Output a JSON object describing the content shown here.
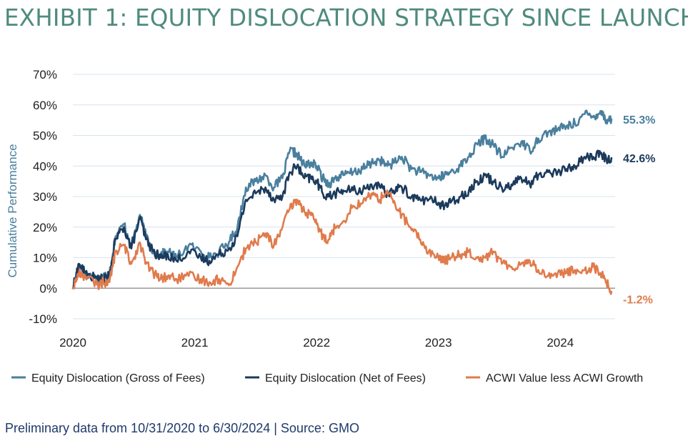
{
  "title": "EXHIBIT 1: EQUITY DISLOCATION STRATEGY SINCE LAUNCH",
  "footnote": "Preliminary data from 10/31/2020 to 6/30/2024 | Source: GMO",
  "colors": {
    "title": "#4f8b7d",
    "gross": "#4a7f9e",
    "net": "#1c3a5c",
    "acwi": "#e07b4c",
    "ylabel": "#4a7f9e",
    "grid": "#d6e4ee",
    "zero_line": "#9a9a9a",
    "footnote": "#1f3a6b"
  },
  "chart_data": {
    "type": "line",
    "title": "EXHIBIT 1: EQUITY DISLOCATION STRATEGY SINCE LAUNCH",
    "xlabel": "",
    "ylabel": "Cumulative Performance",
    "xlim": [
      2020.0,
      2024.45
    ],
    "ylim": [
      -10,
      70
    ],
    "y_unit": "%",
    "yticks": [
      -10,
      0,
      10,
      20,
      30,
      40,
      50,
      60,
      70
    ],
    "ytick_labels": [
      "-10%",
      "0%",
      "10%",
      "20%",
      "30%",
      "40%",
      "50%",
      "60%",
      "70%"
    ],
    "xticks": [
      2020,
      2021,
      2022,
      2023,
      2024
    ],
    "xtick_labels": [
      "2020",
      "2021",
      "2022",
      "2023",
      "2024"
    ],
    "grid": "horizontal",
    "legend_position": "bottom",
    "series": [
      {
        "name": "Equity Dislocation (Gross of Fees)",
        "color": "#4a7f9e",
        "end_label": "55.3%",
        "x": [
          2020.0,
          2020.05,
          2020.1,
          2020.2,
          2020.25,
          2020.3,
          2020.35,
          2020.42,
          2020.48,
          2020.55,
          2020.6,
          2020.66,
          2020.72,
          2020.78,
          2020.85,
          2020.95,
          2021.05,
          2021.12,
          2021.2,
          2021.28,
          2021.35,
          2021.42,
          2021.5,
          2021.58,
          2021.65,
          2021.72,
          2021.78,
          2021.84,
          2021.9,
          2021.95,
          2022.0,
          2022.05,
          2022.1,
          2022.15,
          2022.22,
          2022.3,
          2022.38,
          2022.45,
          2022.52,
          2022.58,
          2022.63,
          2022.7,
          2022.78,
          2022.85,
          2022.92,
          2023.0,
          2023.05,
          2023.1,
          2023.18,
          2023.25,
          2023.32,
          2023.38,
          2023.45,
          2023.52,
          2023.6,
          2023.68,
          2023.75,
          2023.82,
          2023.9,
          2023.98,
          2024.05,
          2024.12,
          2024.2,
          2024.27,
          2024.33,
          2024.38,
          2024.42
        ],
        "values": [
          0,
          8,
          5,
          3,
          4,
          5,
          17,
          21,
          14,
          24,
          17,
          12,
          11,
          12,
          10,
          14,
          12,
          10,
          12,
          15,
          20,
          33,
          35,
          37,
          33,
          36,
          45,
          44,
          40,
          41,
          40,
          36,
          34,
          36,
          37,
          38,
          39,
          41,
          42,
          40,
          41,
          43,
          39,
          38,
          37,
          36,
          37,
          38,
          40,
          43,
          47,
          49,
          47,
          43,
          46,
          48,
          45,
          49,
          51,
          52,
          53,
          54,
          57,
          56,
          58,
          55,
          55.3
        ]
      },
      {
        "name": "Equity Dislocation (Net of Fees)",
        "color": "#1c3a5c",
        "end_label": "42.6%",
        "x": [
          2020.0,
          2020.05,
          2020.1,
          2020.2,
          2020.25,
          2020.3,
          2020.35,
          2020.42,
          2020.48,
          2020.55,
          2020.6,
          2020.66,
          2020.72,
          2020.78,
          2020.85,
          2020.95,
          2021.05,
          2021.12,
          2021.2,
          2021.28,
          2021.35,
          2021.42,
          2021.5,
          2021.58,
          2021.65,
          2021.72,
          2021.78,
          2021.84,
          2021.9,
          2021.95,
          2022.0,
          2022.05,
          2022.1,
          2022.15,
          2022.22,
          2022.3,
          2022.38,
          2022.45,
          2022.52,
          2022.58,
          2022.63,
          2022.7,
          2022.78,
          2022.85,
          2022.92,
          2023.0,
          2023.05,
          2023.1,
          2023.18,
          2023.25,
          2023.32,
          2023.38,
          2023.45,
          2023.52,
          2023.6,
          2023.68,
          2023.75,
          2023.82,
          2023.9,
          2023.98,
          2024.05,
          2024.12,
          2024.2,
          2024.27,
          2024.33,
          2024.38,
          2024.42
        ],
        "values": [
          0,
          8,
          5,
          3,
          3,
          4,
          16,
          20,
          13,
          23,
          16,
          12,
          10,
          11,
          9,
          12,
          10,
          9,
          11,
          13,
          17,
          29,
          31,
          33,
          29,
          30,
          38,
          40,
          36,
          36,
          35,
          31,
          30,
          31,
          32,
          32,
          32,
          34,
          33,
          31,
          32,
          33,
          30,
          29,
          29,
          28,
          27,
          28,
          30,
          32,
          35,
          37,
          35,
          33,
          34,
          36,
          34,
          37,
          38,
          38,
          39,
          40,
          43,
          43,
          44,
          42,
          42.6
        ]
      },
      {
        "name": "ACWI Value less ACWI Growth",
        "color": "#e07b4c",
        "end_label": "-1.2%",
        "x": [
          2020.0,
          2020.05,
          2020.1,
          2020.2,
          2020.25,
          2020.3,
          2020.35,
          2020.42,
          2020.48,
          2020.55,
          2020.6,
          2020.66,
          2020.72,
          2020.78,
          2020.85,
          2020.95,
          2021.05,
          2021.12,
          2021.2,
          2021.28,
          2021.35,
          2021.42,
          2021.5,
          2021.58,
          2021.65,
          2021.72,
          2021.78,
          2021.84,
          2021.9,
          2021.95,
          2022.0,
          2022.05,
          2022.1,
          2022.15,
          2022.22,
          2022.3,
          2022.38,
          2022.45,
          2022.52,
          2022.58,
          2022.63,
          2022.7,
          2022.78,
          2022.85,
          2022.92,
          2023.0,
          2023.05,
          2023.1,
          2023.18,
          2023.25,
          2023.32,
          2023.38,
          2023.45,
          2023.52,
          2023.6,
          2023.68,
          2023.75,
          2023.82,
          2023.9,
          2023.98,
          2024.05,
          2024.12,
          2024.2,
          2024.27,
          2024.33,
          2024.38,
          2024.42
        ],
        "values": [
          0,
          5,
          4,
          1,
          2,
          2,
          12,
          14,
          8,
          15,
          8,
          5,
          3,
          4,
          3,
          4,
          3,
          2,
          3,
          1,
          7,
          13,
          15,
          18,
          14,
          20,
          26,
          29,
          25,
          24,
          21,
          17,
          16,
          20,
          22,
          27,
          28,
          31,
          29,
          32,
          28,
          24,
          19,
          16,
          12,
          10,
          9,
          10,
          11,
          12,
          10,
          10,
          12,
          8,
          7,
          8,
          9,
          6,
          4,
          5,
          5,
          6,
          6,
          7,
          5,
          2,
          -1.2
        ]
      }
    ]
  }
}
